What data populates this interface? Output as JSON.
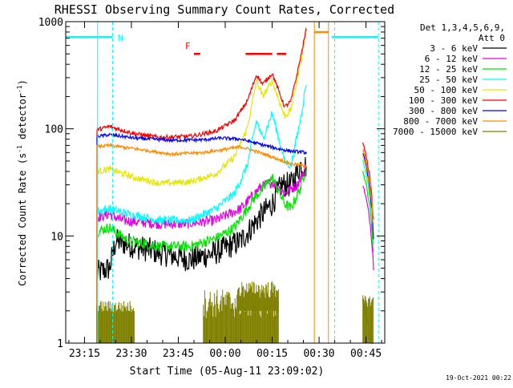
{
  "chart_data": {
    "type": "line",
    "title": "RHESSI Observing Summary Count Rates, Corrected",
    "xlabel": "Start Time (05-Aug-11 23:09:02)",
    "ylabel_main": "Corrected Count Rate (s",
    "ylabel_sup1": "-1",
    "ylabel_mid": " detector",
    "ylabel_sup2": "-1",
    "ylabel_end": ")",
    "yscale": "log",
    "ylim": [
      1,
      1000
    ],
    "xlim_minutes_after_23_09": [
      0,
      102
    ],
    "xticks": [
      {
        "label": "23:15",
        "t": 6
      },
      {
        "label": "23:30",
        "t": 21
      },
      {
        "label": "23:45",
        "t": 36
      },
      {
        "label": "00:00",
        "t": 51
      },
      {
        "label": "00:15",
        "t": 66
      },
      {
        "label": "00:30",
        "t": 81
      },
      {
        "label": "00:45",
        "t": 96
      }
    ],
    "yticks": [
      {
        "label": "1",
        "v": 1
      },
      {
        "label": "10",
        "v": 10
      },
      {
        "label": "100",
        "v": 100
      },
      {
        "label": "1000",
        "v": 1000
      }
    ],
    "legend_header": [
      "Det 1,3,4,5,6,9,",
      "Att 0"
    ],
    "legend_position": "right",
    "series": [
      {
        "name": "3 - 6 keV",
        "color": "#000000"
      },
      {
        "name": "6 - 12 keV",
        "color": "#e600e6"
      },
      {
        "name": "12 - 25 keV",
        "color": "#00e600"
      },
      {
        "name": "25 - 50 keV",
        "color": "#00ffff"
      },
      {
        "name": "50 - 100 keV",
        "color": "#e6e600"
      },
      {
        "name": "100 - 300 keV",
        "color": "#ff0000"
      },
      {
        "name": "300 - 800 keV",
        "color": "#0000ff"
      },
      {
        "name": "800 - 7000 keV",
        "color": "#ff8c00"
      },
      {
        "name": "7000 - 15000 keV",
        "color": "#808000"
      }
    ],
    "flag_label": "F",
    "night_label": "N",
    "timestamp": "19-Oct-2021 00:22"
  }
}
